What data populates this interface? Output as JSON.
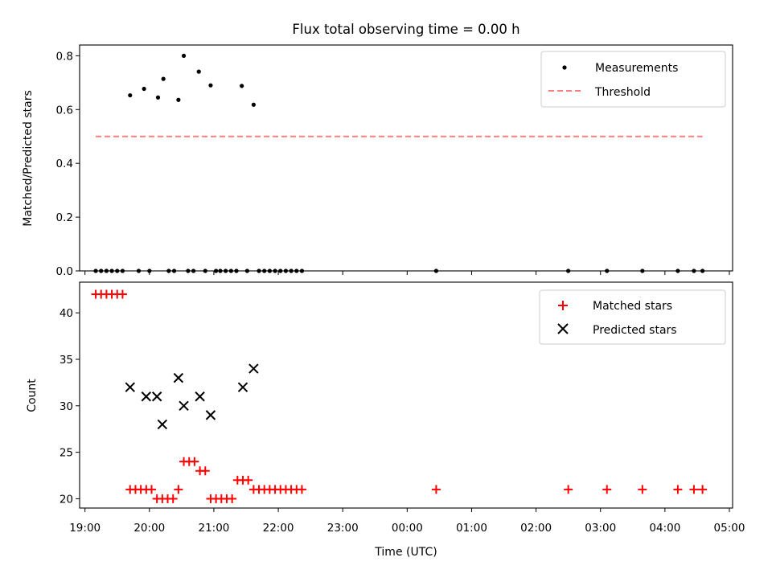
{
  "chart_data": [
    {
      "type": "scatter",
      "title": "Flux total observing time = 0.00 h",
      "xlabel": "",
      "ylabel": "Matched/Predicted stars",
      "ylim": [
        0,
        0.84
      ],
      "yticks": [
        "0.0",
        "0.2",
        "0.4",
        "0.6",
        "0.8"
      ],
      "legend_position": "top-right",
      "series": [
        {
          "name": "Measurements",
          "marker": "dot",
          "color": "#000000",
          "points": [
            [
              "19:10",
              0.0
            ],
            [
              "19:15",
              0.0
            ],
            [
              "19:20",
              0.0
            ],
            [
              "19:25",
              0.0
            ],
            [
              "19:30",
              0.0
            ],
            [
              "19:35",
              0.0
            ],
            [
              "19:42",
              0.653
            ],
            [
              "19:50",
              0.0
            ],
            [
              "19:55",
              0.677
            ],
            [
              "20:00",
              0.0
            ],
            [
              "20:08",
              0.645
            ],
            [
              "20:13",
              0.714
            ],
            [
              "20:18",
              0.0
            ],
            [
              "20:23",
              0.0
            ],
            [
              "20:27",
              0.636
            ],
            [
              "20:32",
              0.8
            ],
            [
              "20:36",
              0.0
            ],
            [
              "20:41",
              0.0
            ],
            [
              "20:46",
              0.741
            ],
            [
              "20:52",
              0.0
            ],
            [
              "20:57",
              0.69
            ],
            [
              "21:02",
              0.0
            ],
            [
              "21:06",
              0.0
            ],
            [
              "21:11",
              0.0
            ],
            [
              "21:16",
              0.0
            ],
            [
              "21:21",
              0.0
            ],
            [
              "21:26",
              0.688
            ],
            [
              "21:31",
              0.0
            ],
            [
              "21:37",
              0.618
            ],
            [
              "21:42",
              0.0
            ],
            [
              "21:47",
              0.0
            ],
            [
              "21:52",
              0.0
            ],
            [
              "21:57",
              0.0
            ],
            [
              "22:02",
              0.0
            ],
            [
              "22:07",
              0.0
            ],
            [
              "22:12",
              0.0
            ],
            [
              "22:17",
              0.0
            ],
            [
              "22:22",
              0.0
            ],
            [
              "00:27",
              0.0
            ],
            [
              "02:30",
              0.0
            ],
            [
              "03:06",
              0.0
            ],
            [
              "03:39",
              0.0
            ],
            [
              "04:12",
              0.0
            ],
            [
              "04:27",
              0.0
            ],
            [
              "04:35",
              0.0
            ]
          ]
        },
        {
          "name": "Threshold",
          "line": "dashed",
          "color": "#ff7f7f",
          "points": [
            [
              "19:10",
              0.5
            ],
            [
              "04:35",
              0.5
            ]
          ]
        }
      ]
    },
    {
      "type": "scatter",
      "title": "",
      "xlabel": "Time (UTC)",
      "ylabel": "Count",
      "ylim": [
        19,
        43.3
      ],
      "yticks": [
        "20",
        "25",
        "30",
        "35",
        "40"
      ],
      "xticks": [
        "19:00",
        "20:00",
        "21:00",
        "22:00",
        "23:00",
        "00:00",
        "01:00",
        "02:00",
        "03:00",
        "04:00",
        "05:00"
      ],
      "xlim": [
        "18:55",
        "05:03"
      ],
      "legend_position": "top-right",
      "series": [
        {
          "name": "Matched stars",
          "marker": "plus",
          "color": "#ff0000",
          "points": [
            [
              "19:10",
              42
            ],
            [
              "19:15",
              42
            ],
            [
              "19:20",
              42
            ],
            [
              "19:25",
              42
            ],
            [
              "19:30",
              42
            ],
            [
              "19:35",
              42
            ],
            [
              "19:42",
              21
            ],
            [
              "19:47",
              21
            ],
            [
              "19:52",
              21
            ],
            [
              "19:57",
              21
            ],
            [
              "20:02",
              21
            ],
            [
              "20:07",
              20
            ],
            [
              "20:12",
              20
            ],
            [
              "20:17",
              20
            ],
            [
              "20:22",
              20
            ],
            [
              "20:27",
              21
            ],
            [
              "20:32",
              24
            ],
            [
              "20:37",
              24
            ],
            [
              "20:42",
              24
            ],
            [
              "20:47",
              23
            ],
            [
              "20:52",
              23
            ],
            [
              "20:57",
              20
            ],
            [
              "21:02",
              20
            ],
            [
              "21:07",
              20
            ],
            [
              "21:12",
              20
            ],
            [
              "21:17",
              20
            ],
            [
              "21:22",
              22
            ],
            [
              "21:27",
              22
            ],
            [
              "21:32",
              22
            ],
            [
              "21:37",
              21
            ],
            [
              "21:42",
              21
            ],
            [
              "21:47",
              21
            ],
            [
              "21:52",
              21
            ],
            [
              "21:57",
              21
            ],
            [
              "22:02",
              21
            ],
            [
              "22:07",
              21
            ],
            [
              "22:12",
              21
            ],
            [
              "22:17",
              21
            ],
            [
              "22:22",
              21
            ],
            [
              "00:27",
              21
            ],
            [
              "02:30",
              21
            ],
            [
              "03:06",
              21
            ],
            [
              "03:39",
              21
            ],
            [
              "04:12",
              21
            ],
            [
              "04:27",
              21
            ],
            [
              "04:35",
              21
            ]
          ]
        },
        {
          "name": "Predicted stars",
          "marker": "x",
          "color": "#000000",
          "points": [
            [
              "19:42",
              32
            ],
            [
              "19:57",
              31
            ],
            [
              "20:07",
              31
            ],
            [
              "20:12",
              28
            ],
            [
              "20:27",
              33
            ],
            [
              "20:32",
              30
            ],
            [
              "20:47",
              31
            ],
            [
              "20:57",
              29
            ],
            [
              "21:27",
              32
            ],
            [
              "21:37",
              34
            ]
          ]
        }
      ]
    }
  ]
}
